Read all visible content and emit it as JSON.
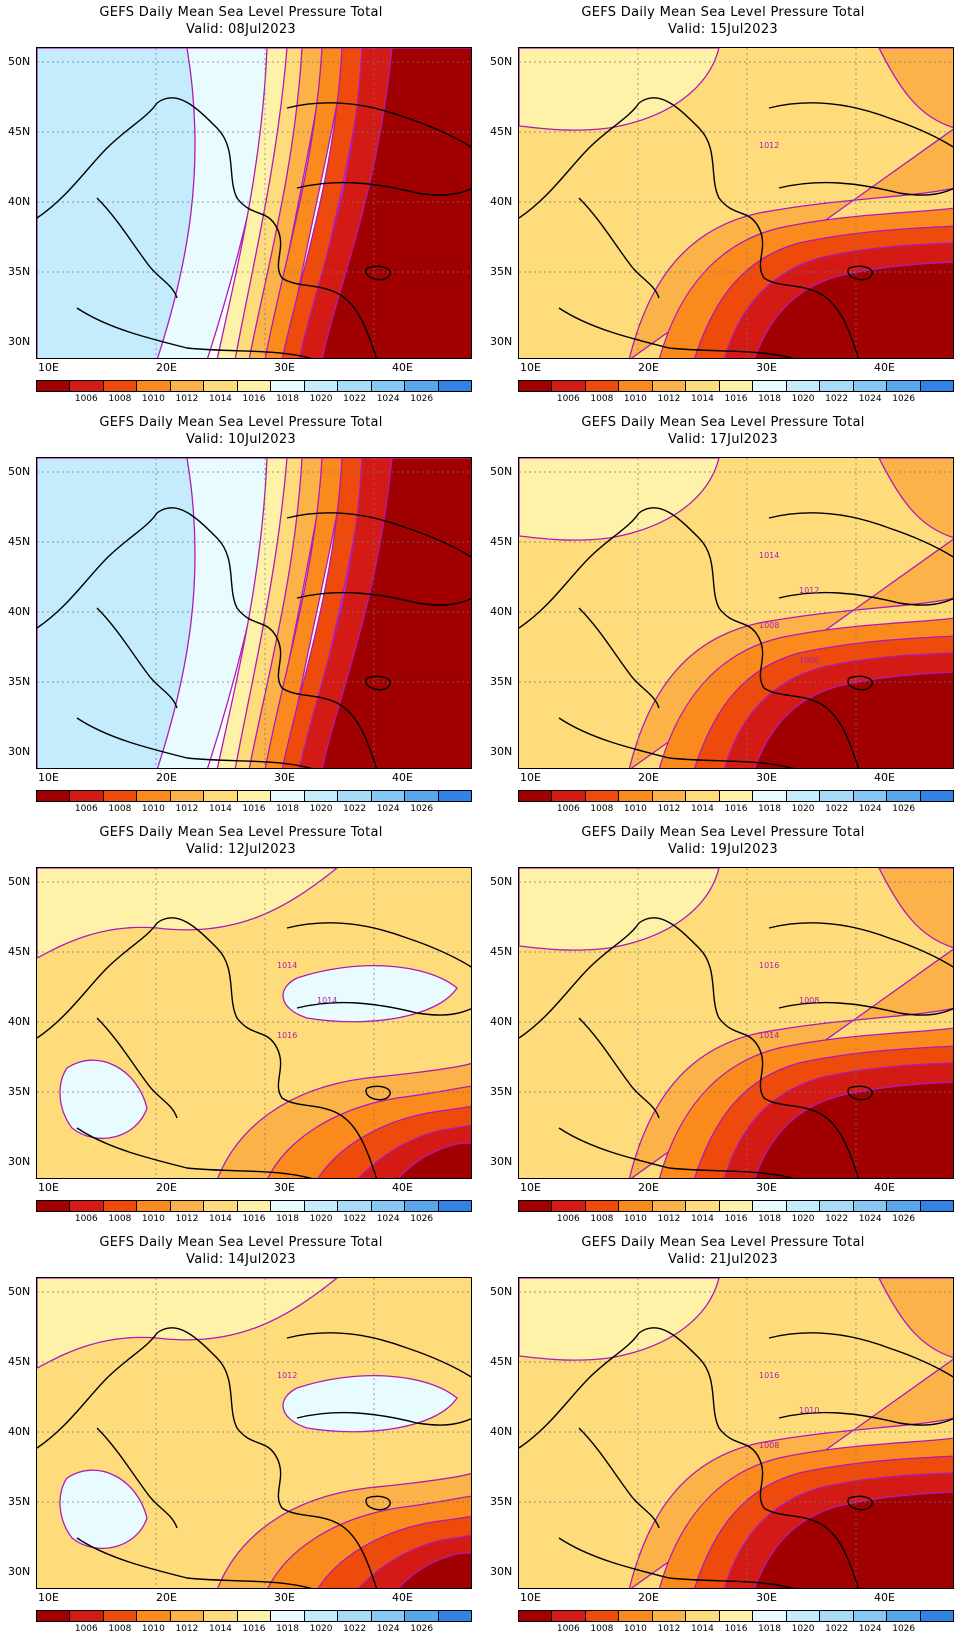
{
  "panels": [
    {
      "title": "GEFS Daily Mean Sea Level Pressure Total",
      "valid": "Valid: 08Jul2023",
      "map_regime": "high_west"
    },
    {
      "title": "GEFS Daily Mean Sea Level Pressure Total",
      "valid": "Valid: 15Jul2023",
      "map_regime": "warm_uniform",
      "contour_labels": [
        "1012"
      ]
    },
    {
      "title": "GEFS Daily Mean Sea Level Pressure Total",
      "valid": "Valid: 10Jul2023",
      "map_regime": "high_west"
    },
    {
      "title": "GEFS Daily Mean Sea Level Pressure Total",
      "valid": "Valid: 17Jul2023",
      "map_regime": "warm_uniform",
      "contour_labels": [
        "1014",
        "1012",
        "1008",
        "1006"
      ]
    },
    {
      "title": "GEFS Daily Mean Sea Level Pressure Total",
      "valid": "Valid: 12Jul2023",
      "map_regime": "mixed",
      "contour_labels": [
        "1014",
        "1014",
        "1016"
      ]
    },
    {
      "title": "GEFS Daily Mean Sea Level Pressure Total",
      "valid": "Valid: 19Jul2023",
      "map_regime": "warm_uniform",
      "contour_labels": [
        "1016",
        "1008",
        "1014"
      ]
    },
    {
      "title": "GEFS Daily Mean Sea Level Pressure Total",
      "valid": "Valid: 14Jul2023",
      "map_regime": "mixed",
      "contour_labels": [
        "1012"
      ]
    },
    {
      "title": "GEFS Daily Mean Sea Level Pressure Total",
      "valid": "Valid: 21Jul2023",
      "map_regime": "warm_uniform",
      "contour_labels": [
        "1016",
        "1010",
        "1008"
      ]
    }
  ],
  "lat_labels": [
    "50N",
    "45N",
    "40N",
    "35N",
    "30N"
  ],
  "lon_labels": [
    "10E",
    "20E",
    "30E",
    "40E"
  ],
  "colorbar_labels": [
    "1006",
    "1008",
    "1010",
    "1012",
    "1014",
    "1016",
    "1018",
    "1020",
    "1022",
    "1024",
    "1026"
  ],
  "colorbar_colors": [
    "#a00000",
    "#d41a14",
    "#ee4a0c",
    "#fb8a1e",
    "#fbb248",
    "#fedc7c",
    "#fef2a8",
    "#e8fcff",
    "#c5ecfc",
    "#a7dbf8",
    "#86c7f4",
    "#5aa6ec",
    "#3282e6"
  ],
  "contour_color": "#b01ab8"
}
